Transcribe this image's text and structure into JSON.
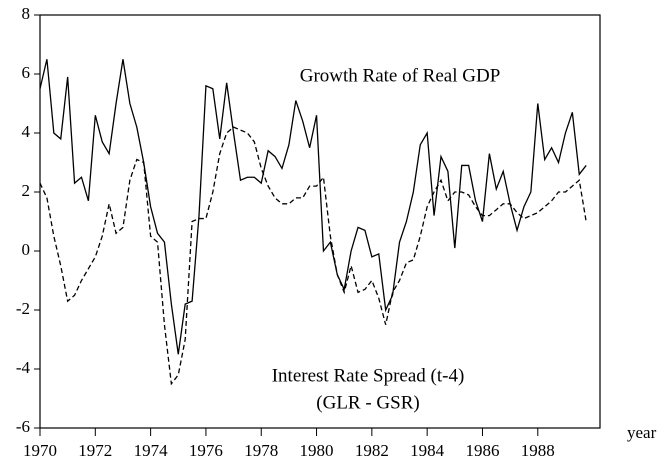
{
  "chart_data": {
    "type": "line",
    "x_label": "year",
    "annotations": [
      "(GLR - GSR)"
    ],
    "x": [
      1970,
      1970.25,
      1970.5,
      1970.75,
      1971,
      1971.25,
      1971.5,
      1971.75,
      1972,
      1972.25,
      1972.5,
      1972.75,
      1973,
      1973.25,
      1973.5,
      1973.75,
      1974,
      1974.25,
      1974.5,
      1974.75,
      1975,
      1975.25,
      1975.5,
      1975.75,
      1976,
      1976.25,
      1976.5,
      1976.75,
      1977,
      1977.25,
      1977.5,
      1977.75,
      1978,
      1978.25,
      1978.5,
      1978.75,
      1979,
      1979.25,
      1979.5,
      1979.75,
      1980,
      1980.25,
      1980.5,
      1980.75,
      1981,
      1981.25,
      1981.5,
      1981.75,
      1982,
      1982.25,
      1982.5,
      1982.75,
      1983,
      1983.25,
      1983.5,
      1983.75,
      1984,
      1984.25,
      1984.5,
      1984.75,
      1985,
      1985.25,
      1985.5,
      1985.75,
      1986,
      1986.25,
      1986.5,
      1986.75,
      1987,
      1987.25,
      1987.5,
      1987.75,
      1988,
      1988.25,
      1988.5,
      1988.75,
      1989,
      1989.25,
      1989.5,
      1989.75
    ],
    "series": [
      {
        "name": "Growth Rate of Real GDP",
        "color": "#000000",
        "dash": "solid",
        "values": [
          5.5,
          6.5,
          4.0,
          3.8,
          5.9,
          2.3,
          2.5,
          1.7,
          4.6,
          3.7,
          3.3,
          5.0,
          6.5,
          5.0,
          4.2,
          3.0,
          1.5,
          0.6,
          0.3,
          -1.8,
          -3.5,
          -1.8,
          -1.7,
          1.2,
          5.6,
          5.5,
          3.8,
          5.7,
          4.0,
          2.4,
          2.5,
          2.5,
          2.3,
          3.4,
          3.2,
          2.8,
          3.6,
          5.1,
          4.4,
          3.5,
          4.6,
          0.0,
          0.3,
          -0.8,
          -1.3,
          0.0,
          0.8,
          0.7,
          -0.2,
          -0.1,
          -2.0,
          -1.5,
          0.3,
          1.0,
          2.0,
          3.6,
          4.0,
          1.2,
          3.2,
          2.7,
          0.1,
          2.9,
          2.9,
          1.7,
          1.0,
          3.3,
          2.1,
          2.7,
          1.6,
          0.7,
          1.5,
          2.0,
          5.0,
          3.1,
          3.5,
          3.0,
          4.0,
          4.7,
          2.6,
          2.9
        ]
      },
      {
        "name": "Interest Rate Spread (t-4)",
        "color": "#000000",
        "dash": "dashed",
        "values": [
          2.3,
          1.8,
          0.5,
          -0.5,
          -1.7,
          -1.5,
          -1.0,
          -0.6,
          -0.2,
          0.5,
          1.6,
          0.6,
          0.8,
          2.4,
          3.1,
          3.0,
          0.5,
          0.3,
          -2.5,
          -4.5,
          -4.2,
          -3.0,
          1.0,
          1.1,
          1.1,
          2.0,
          3.3,
          4.0,
          4.2,
          4.1,
          4.0,
          3.7,
          2.8,
          2.2,
          1.8,
          1.6,
          1.6,
          1.8,
          1.8,
          2.2,
          2.2,
          2.5,
          0.5,
          -0.8,
          -1.4,
          -0.5,
          -1.4,
          -1.3,
          -1.0,
          -1.6,
          -2.5,
          -1.4,
          -1.0,
          -0.4,
          -0.3,
          0.5,
          1.5,
          2.0,
          2.4,
          1.7,
          2.0,
          2.0,
          1.9,
          1.5,
          1.2,
          1.2,
          1.4,
          1.6,
          1.6,
          1.3,
          1.1,
          1.2,
          1.3,
          1.5,
          1.7,
          2.0,
          2.0,
          2.2,
          2.4,
          1.0
        ]
      }
    ],
    "xlim": [
      1970,
      1990.25
    ],
    "xticks": [
      1970,
      1972,
      1974,
      1976,
      1978,
      1980,
      1982,
      1984,
      1986,
      1988
    ],
    "ylim": [
      -6,
      8
    ],
    "yticks": [
      -6,
      -4,
      -2,
      0,
      2,
      4,
      6,
      8
    ],
    "grid": false
  }
}
